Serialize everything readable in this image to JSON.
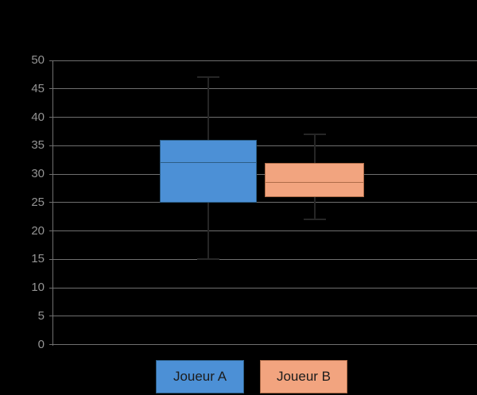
{
  "chart": {
    "title": "",
    "y_axis_tick_labels": [
      "0",
      "5",
      "10",
      "15",
      "20",
      "25",
      "30",
      "35",
      "40",
      "45",
      "50"
    ],
    "legend": {
      "items": [
        {
          "label": "Joueur A"
        },
        {
          "label": "Joueur B"
        }
      ]
    }
  },
  "chart_data": {
    "type": "boxplot",
    "title": "",
    "xlabel": "",
    "ylabel": "",
    "ylim": [
      0,
      50
    ],
    "ytick_step": 5,
    "grid": true,
    "legend_position": "bottom",
    "series": [
      {
        "name": "Joueur A",
        "min": 15,
        "q1": 25,
        "median": 32,
        "q3": 36,
        "max": 47,
        "fill": "#4c90d6",
        "border": "#2d5e86",
        "whisker_note": "whisker lines drawn in black (invisible on black bg); upper whisker crosses 45 gridline but not 50, lower cap sits on 15 gridline"
      },
      {
        "name": "Joueur B",
        "min": 22,
        "q1": 26,
        "median": 28.5,
        "q3": 32,
        "max": 37,
        "fill": "#f2a47f",
        "border": "#ae6c49",
        "whisker_note": "upper whisker crosses 35 gridline but not 40; lower whisker crosses 25 gridline but not 20"
      }
    ]
  },
  "colors": {
    "background": "#000000",
    "gridline": "#6f6f6f",
    "axis": "#6f6f6f",
    "tick_label": "#949494",
    "whisker": "#262626",
    "legend_text": "#1c1c1c"
  }
}
